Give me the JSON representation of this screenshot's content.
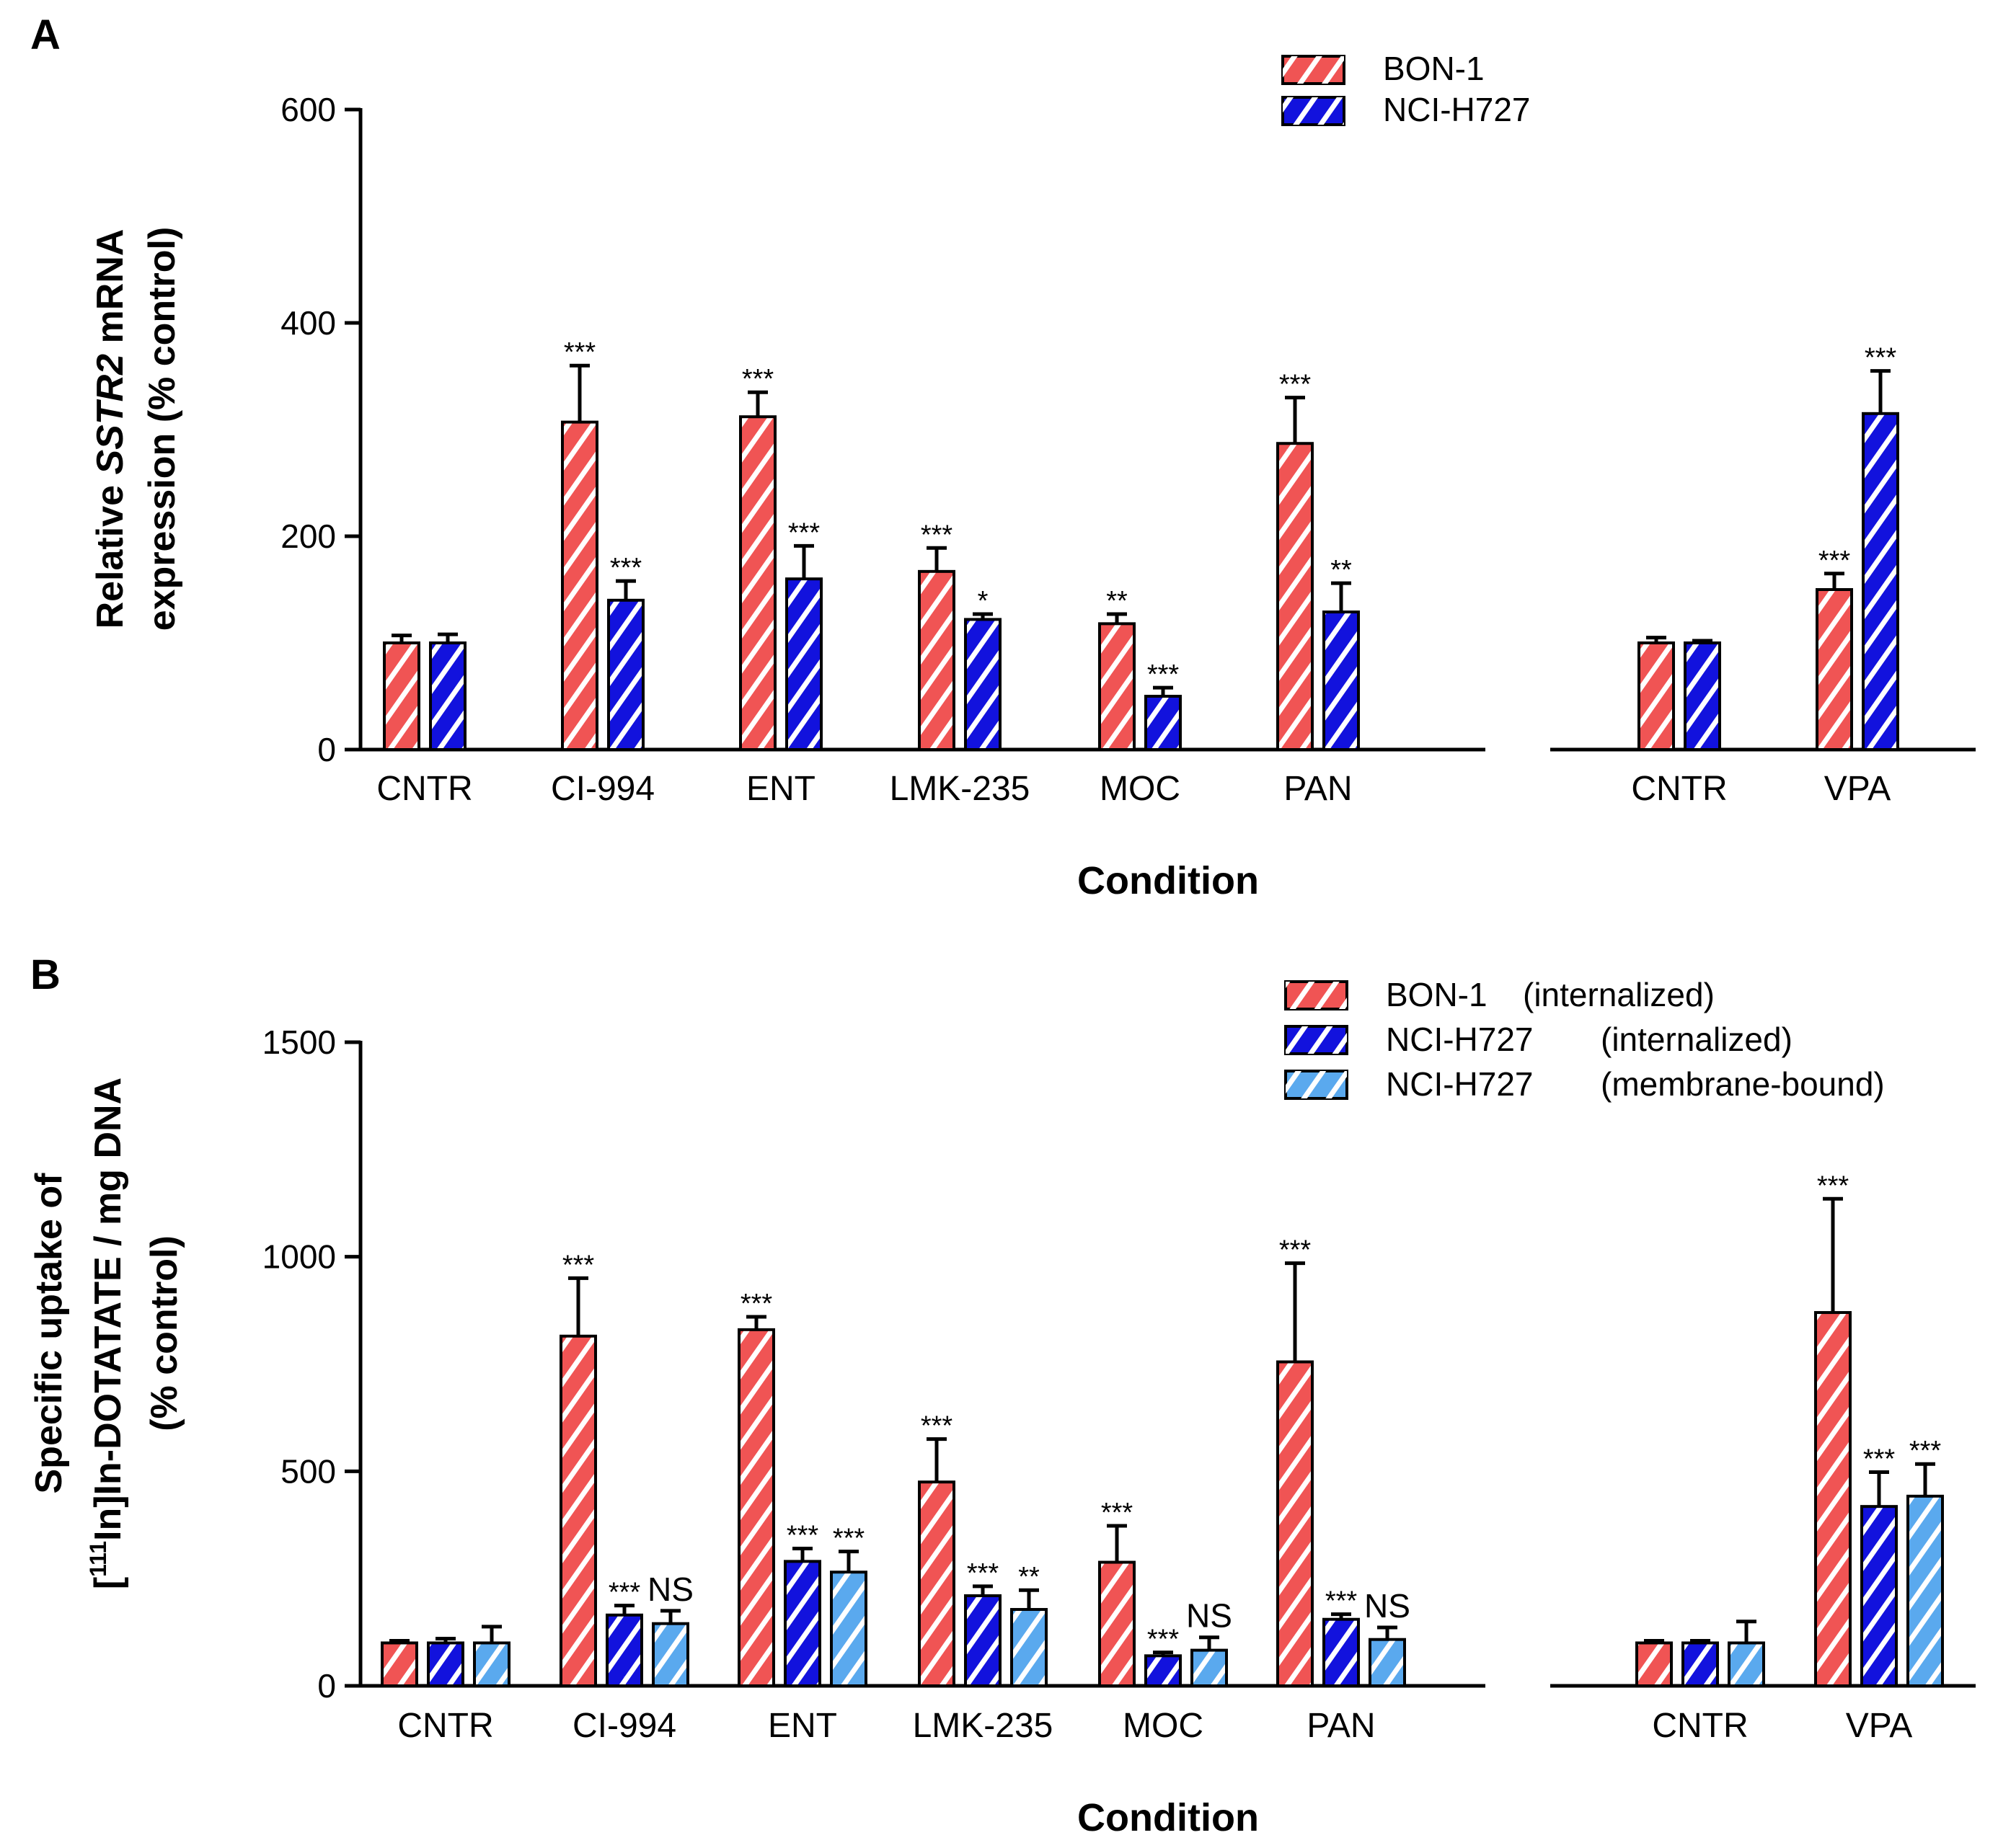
{
  "colors": {
    "bon1": "#f05454",
    "nci_int": "#1212dd",
    "nci_mem": "#5aa9ee",
    "axis": "#000000"
  },
  "chart_data": [
    {
      "type": "bar",
      "panel": "A",
      "xlabel": "Condition",
      "ylabel_parts": [
        "Relative ",
        "SSTR2",
        " mRNA"
      ],
      "ylabel_line2": "expression (% control)",
      "ylim": [
        0,
        600
      ],
      "yticks": [
        0,
        200,
        400,
        600
      ],
      "categories": [
        "CNTR",
        "CI-994",
        "ENT",
        "LMK-235",
        "MOC",
        "PAN",
        "CNTR",
        "VPA"
      ],
      "legend": [
        "BON-1",
        "NCI-H727"
      ],
      "legend_position": "top-right",
      "series": [
        {
          "name": "BON-1",
          "color_key": "bon1",
          "values": [
            100,
            307,
            312,
            167,
            118,
            287,
            100,
            150
          ],
          "errors": [
            7,
            53,
            23,
            22,
            9,
            43,
            5,
            15
          ],
          "significance": [
            "",
            "***",
            "***",
            "***",
            "**",
            "***",
            "",
            "***"
          ]
        },
        {
          "name": "NCI-H727",
          "color_key": "nci_int",
          "values": [
            100,
            140,
            160,
            122,
            50,
            129,
            100,
            315
          ],
          "errors": [
            8,
            18,
            31,
            5,
            8,
            27,
            2,
            40
          ],
          "significance": [
            "",
            "***",
            "***",
            "*",
            "***",
            "**",
            "",
            "***"
          ]
        }
      ]
    },
    {
      "type": "bar",
      "panel": "B",
      "xlabel": "Condition",
      "ylabel_line1": "Specific uptake of",
      "ylabel_parts": [
        "[",
        "111",
        "In]In-DOTATATE / mg DNA"
      ],
      "ylabel_line3": "(% control)",
      "ylim": [
        0,
        1500
      ],
      "yticks": [
        0,
        500,
        1000,
        1500
      ],
      "categories": [
        "CNTR",
        "CI-994",
        "ENT",
        "LMK-235",
        "MOC",
        "PAN",
        "CNTR",
        "VPA"
      ],
      "legend": [
        {
          "name": "BON-1",
          "detail": "(internalized)"
        },
        {
          "name": "NCI-H727",
          "detail": "(internalized)"
        },
        {
          "name": "NCI-H727",
          "detail": "(membrane-bound)"
        }
      ],
      "legend_position": "top-right",
      "series": [
        {
          "name": "BON-1 (internalized)",
          "color_key": "bon1",
          "values": [
            100,
            815,
            830,
            475,
            288,
            755,
            100,
            870
          ],
          "errors": [
            5,
            135,
            30,
            100,
            85,
            230,
            5,
            265
          ],
          "significance": [
            "",
            "***",
            "***",
            "***",
            "***",
            "***",
            "",
            "***"
          ]
        },
        {
          "name": "NCI-H727 (internalized)",
          "color_key": "nci_int",
          "values": [
            100,
            165,
            290,
            210,
            70,
            155,
            100,
            418
          ],
          "errors": [
            10,
            22,
            30,
            22,
            8,
            12,
            5,
            80
          ],
          "significance": [
            "",
            "***",
            "***",
            "***",
            "***",
            "***",
            "",
            "***"
          ]
        },
        {
          "name": "NCI-H727 (membrane-bound)",
          "color_key": "nci_mem",
          "values": [
            100,
            145,
            265,
            178,
            83,
            108,
            100,
            442
          ],
          "errors": [
            38,
            30,
            48,
            45,
            30,
            28,
            50,
            75
          ],
          "significance": [
            "",
            "NS",
            "***",
            "**",
            "NS",
            "NS",
            "",
            "***"
          ]
        }
      ]
    }
  ]
}
